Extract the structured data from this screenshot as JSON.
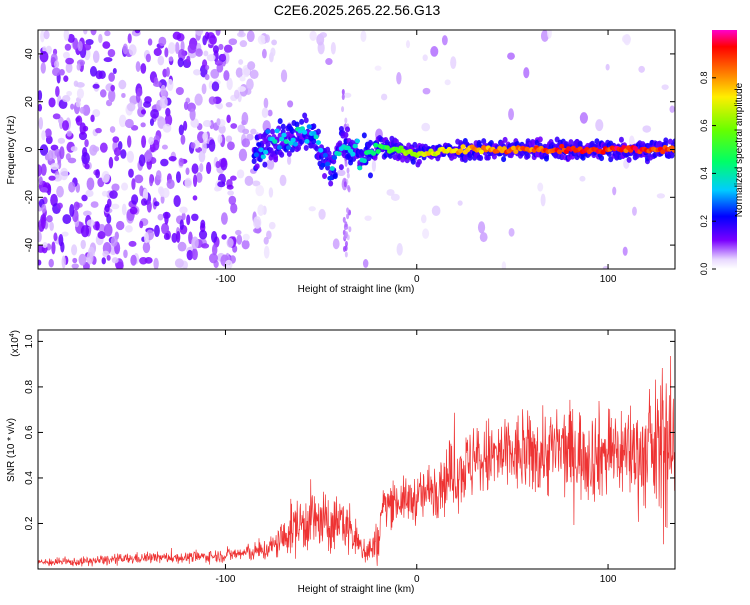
{
  "title": "C2E6.2025.265.22.56.G13",
  "chart_data": [
    {
      "type": "heatmap",
      "xlabel": "Height of straight line (km)",
      "ylabel": "Frequency (Hz)",
      "xlim": [
        -198,
        135
      ],
      "ylim": [
        -50,
        50
      ],
      "xticks": [
        -100,
        0,
        100
      ],
      "yticks": [
        -40,
        -20,
        0,
        20,
        40
      ],
      "xtick_labels": [
        "-100",
        "0",
        "100"
      ],
      "ytick_labels": [
        "-40",
        "-20",
        "0",
        "20",
        "40"
      ],
      "ridge": [
        {
          "x": -85,
          "y": -3,
          "level": 0.25
        },
        {
          "x": -78,
          "y": 2,
          "level": 0.3
        },
        {
          "x": -72,
          "y": 5,
          "level": 0.35
        },
        {
          "x": -66,
          "y": 4,
          "level": 0.35
        },
        {
          "x": -60,
          "y": 8,
          "level": 0.4
        },
        {
          "x": -55,
          "y": 7,
          "level": 0.35
        },
        {
          "x": -50,
          "y": -2,
          "level": 0.3
        },
        {
          "x": -45,
          "y": -8,
          "level": 0.25
        },
        {
          "x": -40,
          "y": 3,
          "level": 0.35
        },
        {
          "x": -35,
          "y": 0,
          "level": 0.35
        },
        {
          "x": -28,
          "y": -4,
          "level": 0.4
        },
        {
          "x": -20,
          "y": 1,
          "level": 0.45
        },
        {
          "x": -12,
          "y": 0,
          "level": 0.55
        },
        {
          "x": -5,
          "y": -1,
          "level": 0.6
        },
        {
          "x": 0,
          "y": -2,
          "level": 0.65
        },
        {
          "x": 10,
          "y": -1,
          "level": 0.7
        },
        {
          "x": 20,
          "y": 0,
          "level": 0.75
        },
        {
          "x": 40,
          "y": 0,
          "level": 0.82
        },
        {
          "x": 60,
          "y": 0,
          "level": 0.85
        },
        {
          "x": 80,
          "y": 0,
          "level": 0.88
        },
        {
          "x": 100,
          "y": 0,
          "level": 0.9
        },
        {
          "x": 120,
          "y": 0,
          "level": 0.9
        },
        {
          "x": 135,
          "y": 0,
          "level": 0.88
        }
      ],
      "colorbar": {
        "label": "Normalized spectral amplitude",
        "ticks": [
          0.0,
          0.2,
          0.4,
          0.6,
          0.8
        ],
        "tick_labels": [
          "0.0",
          "0.2",
          "0.4",
          "0.6",
          "0.8"
        ],
        "range": [
          0,
          1
        ]
      }
    },
    {
      "type": "line",
      "xlabel": "Height of straight line (km)",
      "ylabel": "SNR (10 * v/v)",
      "multiplier_base": "(x10",
      "multiplier_exp": "4",
      "multiplier_close": ")",
      "xlim": [
        -198,
        135
      ],
      "ylim": [
        0,
        1.05
      ],
      "xticks": [
        -100,
        0,
        100
      ],
      "yticks": [
        0.2,
        0.4,
        0.6,
        0.8,
        1.0
      ],
      "xtick_labels": [
        "-100",
        "0",
        "100"
      ],
      "ytick_labels": [
        "0.2",
        "0.4",
        "0.6",
        "0.8",
        "1.0"
      ],
      "color": "#ee3333",
      "series": [
        {
          "x": [
            -198,
            -180,
            -160,
            -140,
            -120,
            -100,
            -90,
            -80,
            -75,
            -70,
            -65,
            -60,
            -55,
            -50,
            -45,
            -40,
            -35,
            -30,
            -25,
            -20,
            -18,
            -15,
            -10,
            -5,
            0,
            5,
            10,
            20,
            30,
            40,
            50,
            60,
            70,
            80,
            90,
            100,
            110,
            120,
            125,
            130,
            135
          ],
          "mean": [
            0.03,
            0.03,
            0.04,
            0.05,
            0.05,
            0.06,
            0.07,
            0.08,
            0.1,
            0.13,
            0.18,
            0.2,
            0.22,
            0.2,
            0.18,
            0.22,
            0.17,
            0.1,
            0.08,
            0.12,
            0.27,
            0.29,
            0.3,
            0.3,
            0.31,
            0.33,
            0.37,
            0.42,
            0.47,
            0.49,
            0.5,
            0.5,
            0.52,
            0.52,
            0.5,
            0.51,
            0.52,
            0.5,
            0.52,
            0.55,
            0.5
          ],
          "amp": [
            0.015,
            0.015,
            0.02,
            0.02,
            0.02,
            0.025,
            0.03,
            0.04,
            0.05,
            0.07,
            0.1,
            0.11,
            0.12,
            0.12,
            0.1,
            0.1,
            0.1,
            0.06,
            0.06,
            0.08,
            0.09,
            0.08,
            0.08,
            0.08,
            0.09,
            0.1,
            0.12,
            0.13,
            0.14,
            0.15,
            0.15,
            0.15,
            0.17,
            0.17,
            0.17,
            0.17,
            0.18,
            0.2,
            0.25,
            0.3,
            0.3
          ]
        }
      ]
    }
  ]
}
